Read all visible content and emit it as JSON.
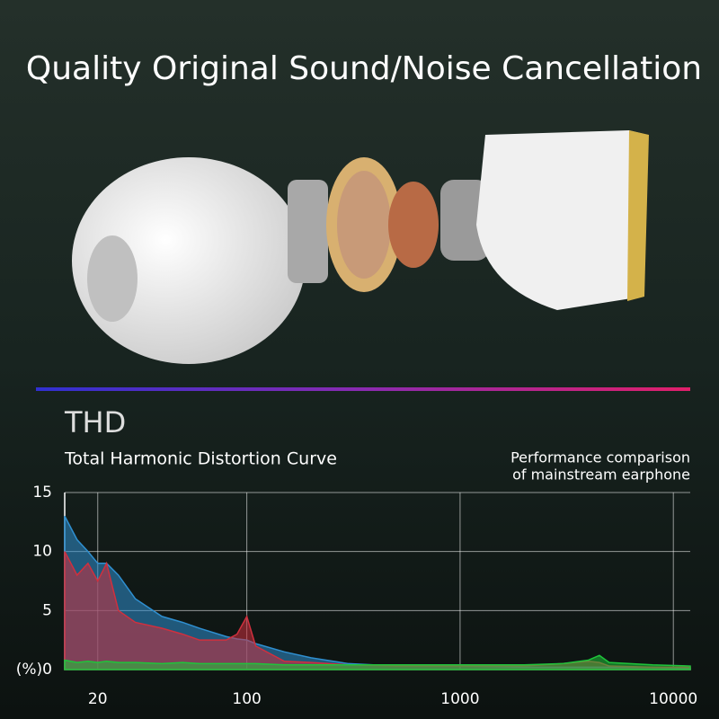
{
  "header": {
    "title": "Quality Original Sound/Noise Cancellation"
  },
  "chart_data": {
    "type": "area",
    "title": "THD",
    "subtitle": "Total Harmonic Distortion Curve",
    "annotation": [
      "Performance comparison",
      "of mainstream earphone"
    ],
    "xscale": "log",
    "x": [
      14,
      16,
      18,
      20,
      22,
      25,
      30,
      40,
      50,
      60,
      80,
      90,
      100,
      110,
      150,
      200,
      300,
      500,
      1000,
      2000,
      3000,
      4000,
      4500,
      5000,
      8000,
      12000
    ],
    "series": [
      {
        "color": "#2f8fd0",
        "values": [
          13,
          11,
          10,
          9,
          9,
          8,
          6,
          4.5,
          4,
          3.5,
          2.8,
          2.6,
          2.5,
          2.2,
          1.5,
          1,
          0.5,
          0.3,
          0.3,
          0.2,
          0.2,
          0.2,
          0.2,
          0.2,
          0.2,
          0.1
        ]
      },
      {
        "color": "#d0303e",
        "values": [
          10,
          8,
          9,
          7.5,
          9,
          5,
          4,
          3.5,
          3,
          2.5,
          2.5,
          3,
          4.5,
          2,
          0.7,
          0.6,
          0.4,
          0.3,
          0.3,
          0.3,
          0.5,
          0.7,
          0.6,
          0.3,
          0.2,
          0.2
        ]
      },
      {
        "color": "#1fc43a",
        "values": [
          0.8,
          0.6,
          0.7,
          0.6,
          0.7,
          0.6,
          0.6,
          0.5,
          0.6,
          0.5,
          0.5,
          0.5,
          0.5,
          0.5,
          0.4,
          0.4,
          0.4,
          0.4,
          0.4,
          0.4,
          0.5,
          0.8,
          1.2,
          0.6,
          0.4,
          0.3
        ]
      }
    ],
    "xlim": [
      14,
      12000
    ],
    "xticks": [
      20,
      100,
      1000,
      10000
    ],
    "ylim": [
      0,
      15
    ],
    "yticks": [
      {
        "value": 0,
        "label": "(%)0"
      },
      5,
      10,
      15
    ],
    "grid": true
  }
}
